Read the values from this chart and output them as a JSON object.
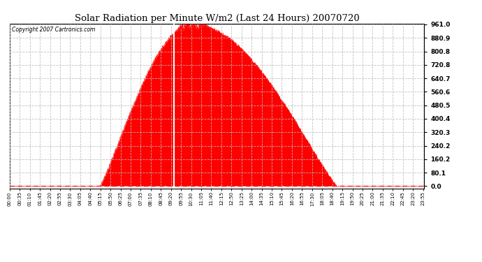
{
  "title": "Solar Radiation per Minute W/m2 (Last 24 Hours) 20070720",
  "copyright_text": "Copyright 2007 Cartronics.com",
  "fill_color": "#FF0000",
  "line_color": "#FF0000",
  "background_color": "#FFFFFF",
  "grid_color": "#BBBBBB",
  "y_ticks": [
    0.0,
    80.1,
    160.2,
    240.2,
    320.3,
    400.4,
    480.5,
    560.6,
    640.7,
    720.8,
    800.8,
    880.9,
    961.0
  ],
  "y_max": 961.0,
  "y_min": 0.0,
  "x_tick_labels": [
    "00:00",
    "00:35",
    "01:10",
    "01:45",
    "02:20",
    "02:55",
    "03:30",
    "04:05",
    "04:40",
    "05:15",
    "05:50",
    "06:25",
    "07:00",
    "07:35",
    "08:10",
    "08:45",
    "09:20",
    "09:55",
    "10:30",
    "11:05",
    "11:40",
    "12:15",
    "12:50",
    "13:25",
    "14:00",
    "14:35",
    "15:10",
    "15:45",
    "16:20",
    "16:55",
    "17:30",
    "18:05",
    "18:40",
    "19:15",
    "19:50",
    "20:25",
    "21:00",
    "21:35",
    "22:10",
    "22:45",
    "23:20",
    "23:55"
  ],
  "white_line_minute": 570,
  "sunrise_minute": 315,
  "sunset_minute": 1135,
  "peak_minute": 635,
  "peak_value": 961.0
}
